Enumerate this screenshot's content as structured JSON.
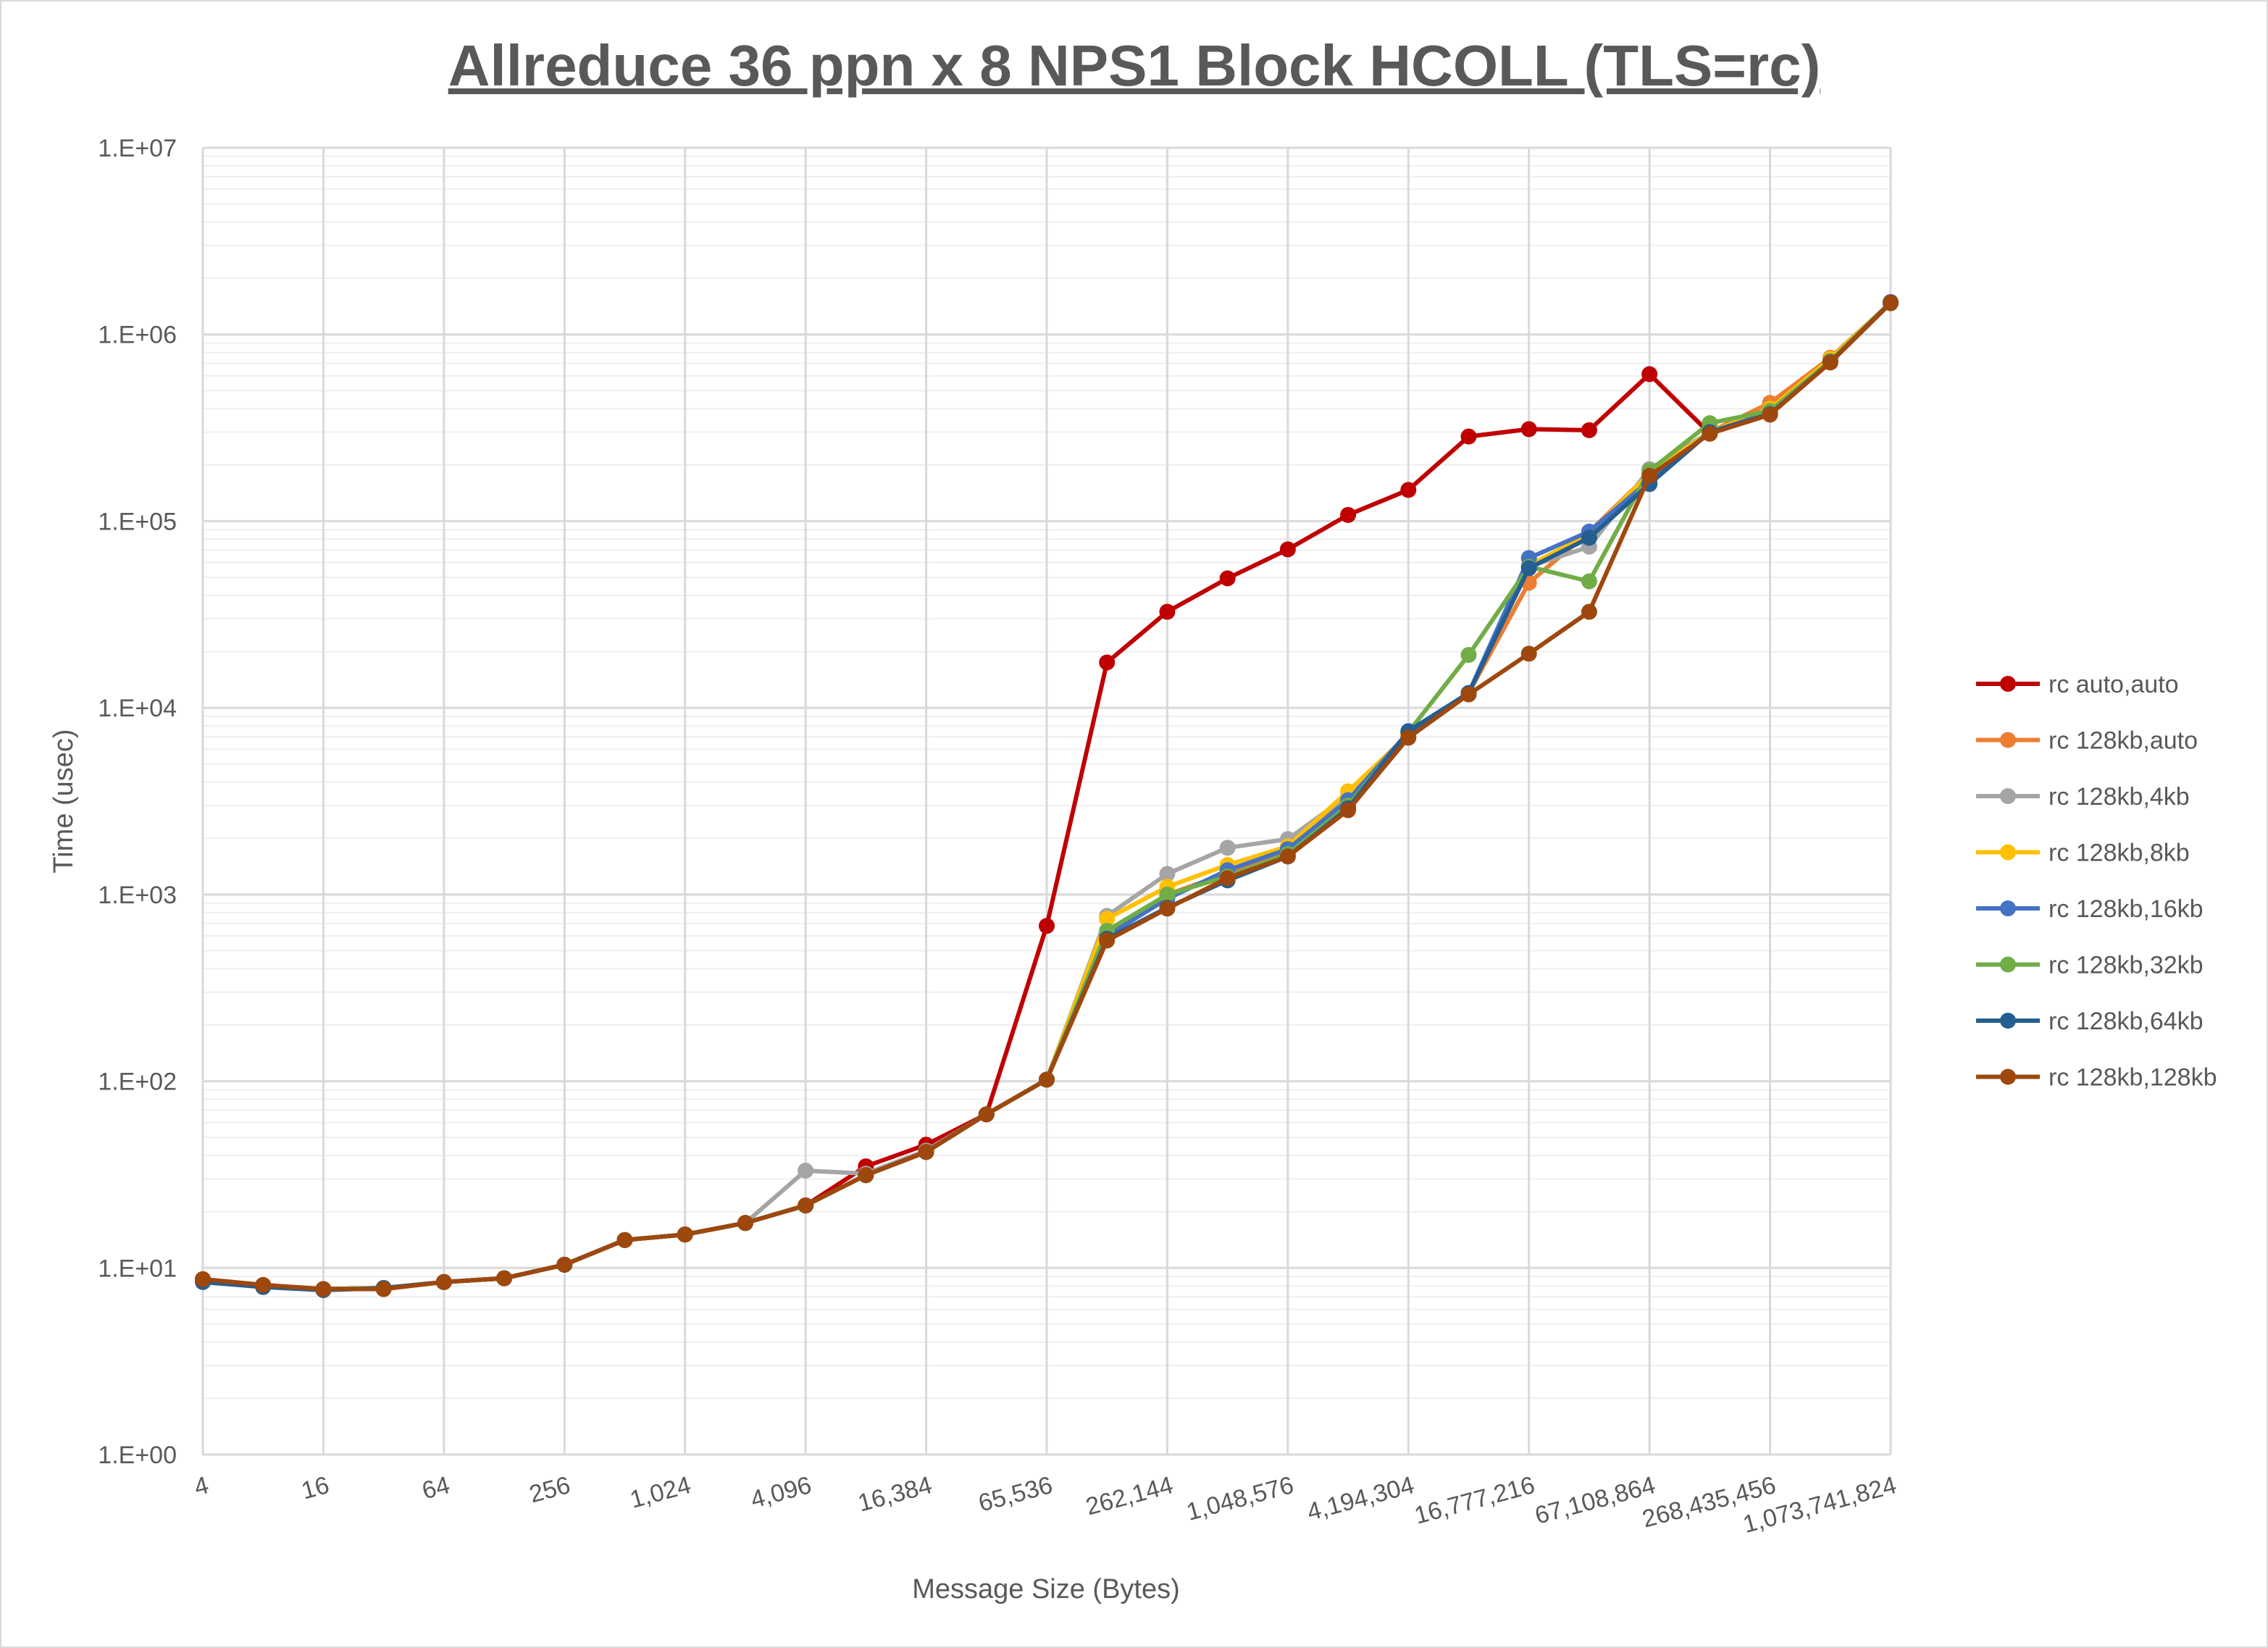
{
  "chart_data": {
    "type": "line",
    "title": "Allreduce 36 ppn x 8 NPS1 Block HCOLL (TLS=rc)",
    "xlabel": "Message Size (Bytes)",
    "ylabel": "Time (usec)",
    "x_scale": "log2",
    "y_scale": "log10",
    "ylim": [
      1,
      10000000
    ],
    "grid": true,
    "legend_position": "right",
    "x": [
      4,
      8,
      16,
      32,
      64,
      128,
      256,
      512,
      1024,
      2048,
      4096,
      8192,
      16384,
      32768,
      65536,
      131072,
      262144,
      524288,
      1048576,
      2097152,
      4194304,
      8388608,
      16777216,
      33554432,
      67108864,
      134217728,
      268435456,
      536870912,
      1073741824
    ],
    "x_tick_labels": [
      "4",
      "16",
      "64",
      "256",
      "1,024",
      "4,096",
      "16,384",
      "65,536",
      "262,144",
      "1,048,576",
      "4,194,304",
      "16,777,216",
      "67,108,864",
      "268,435,456",
      "1,073,741,824"
    ],
    "y_tick_labels": [
      "1.E+00",
      "1.E+01",
      "1.E+02",
      "1.E+03",
      "1.E+04",
      "1.E+05",
      "1.E+06",
      "1.E+07"
    ],
    "series": [
      {
        "name": "rc auto,auto",
        "color": "#C00000",
        "values": [
          8.7,
          8.1,
          7.7,
          7.8,
          8.4,
          8.8,
          10.4,
          14.1,
          15.1,
          17.4,
          21.6,
          35,
          45.7,
          66.5,
          679,
          17500,
          32700,
          49400,
          70600,
          108000,
          147000,
          284000,
          311000,
          307000,
          613000,
          295000,
          380000,
          720000,
          1490000
        ]
      },
      {
        "name": "rc 128kb,auto",
        "color": "#ED7D31",
        "values": [
          8.6,
          8.0,
          7.7,
          7.8,
          8.4,
          8.8,
          10.4,
          14.1,
          15.1,
          17.4,
          21.6,
          31.4,
          41.8,
          66.5,
          102,
          620,
          1000,
          1300,
          1750,
          3300,
          7300,
          12000,
          46800,
          87500,
          180000,
          300000,
          430000,
          750000,
          1480000
        ]
      },
      {
        "name": "rc 128kb,4kb",
        "color": "#A5A5A5",
        "values": [
          8.6,
          8.0,
          7.7,
          7.8,
          8.4,
          8.8,
          10.4,
          14.1,
          15.1,
          17.4,
          33.2,
          32,
          42.5,
          66.5,
          102,
          769,
          1290,
          1780,
          1980,
          3390,
          7300,
          12000,
          57000,
          73000,
          190000,
          300000,
          385000,
          730000,
          1480000
        ]
      },
      {
        "name": "rc 128kb,8kb",
        "color": "#FFC000",
        "values": [
          8.6,
          8.0,
          7.7,
          7.8,
          8.4,
          8.8,
          10.4,
          14.1,
          15.1,
          17.4,
          21.6,
          31.4,
          41.8,
          66.5,
          102,
          741,
          1100,
          1440,
          1810,
          3570,
          7200,
          12000,
          58000,
          85000,
          180000,
          300000,
          400000,
          740000,
          1480000
        ]
      },
      {
        "name": "rc 128kb,16kb",
        "color": "#4472C4",
        "values": [
          8.5,
          8.0,
          7.7,
          7.8,
          8.4,
          8.8,
          10.4,
          14.1,
          15.1,
          17.4,
          21.6,
          31.4,
          41.8,
          66.5,
          102,
          600,
          950,
          1350,
          1750,
          3200,
          7400,
          12000,
          63400,
          88000,
          165000,
          300000,
          380000,
          720000,
          1480000
        ]
      },
      {
        "name": "rc 128kb,32kb",
        "color": "#70AD47",
        "values": [
          8.6,
          8.0,
          7.7,
          7.8,
          8.4,
          8.8,
          10.4,
          14.1,
          15.1,
          17.4,
          21.6,
          31.4,
          41.8,
          66.5,
          102,
          640,
          1000,
          1250,
          1650,
          3000,
          7400,
          19200,
          57000,
          47600,
          186000,
          335000,
          390000,
          720000,
          1480000
        ]
      },
      {
        "name": "rc 128kb,64kb",
        "color": "#255E91",
        "values": [
          8.4,
          7.9,
          7.6,
          7.8,
          8.4,
          8.8,
          10.4,
          14.1,
          15.1,
          17.4,
          21.6,
          31.4,
          41.8,
          66.5,
          102,
          580,
          850,
          1190,
          1600,
          2900,
          7500,
          12000,
          56000,
          81400,
          158000,
          300000,
          375000,
          710000,
          1480000
        ]
      },
      {
        "name": "rc 128kb,128kb",
        "color": "#9E480E",
        "values": [
          8.7,
          8.1,
          7.7,
          7.7,
          8.4,
          8.8,
          10.4,
          14.1,
          15.1,
          17.4,
          21.6,
          31.4,
          41.8,
          66.5,
          102,
          567,
          841,
          1224,
          1600,
          2830,
          6920,
          11800,
          19500,
          32700,
          175000,
          294000,
          372000,
          708000,
          1470000
        ]
      }
    ]
  }
}
